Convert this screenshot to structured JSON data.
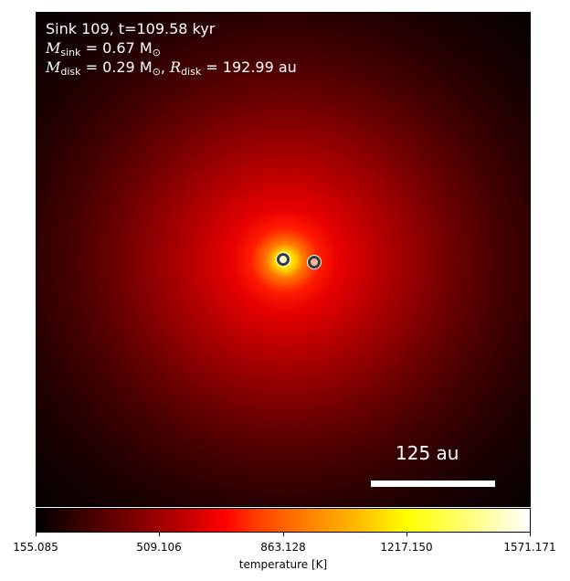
{
  "annotation": {
    "line1": "Sink 109, t=109.58 kyr",
    "sink_symbol": "M",
    "sink_sub": "sink",
    "sink_value": " = 0.67 M",
    "sun_sub": "⊙",
    "disk_symbol": "M",
    "disk_sub": "disk",
    "disk_value": " = 0.29 M",
    "sep": ", ",
    "radius_symbol": "R",
    "radius_sub": "disk",
    "radius_value": " = 192.99 au"
  },
  "scalebar": {
    "label": "125 au"
  },
  "colorbar": {
    "label": "temperature [K]",
    "ticks": [
      "155.085",
      "509.106",
      "863.128",
      "1217.150",
      "1571.171"
    ]
  },
  "sinks": [
    {
      "name": "primary",
      "color": "#ffffcc"
    },
    {
      "name": "secondary",
      "color": "#ffb3a0"
    }
  ]
}
